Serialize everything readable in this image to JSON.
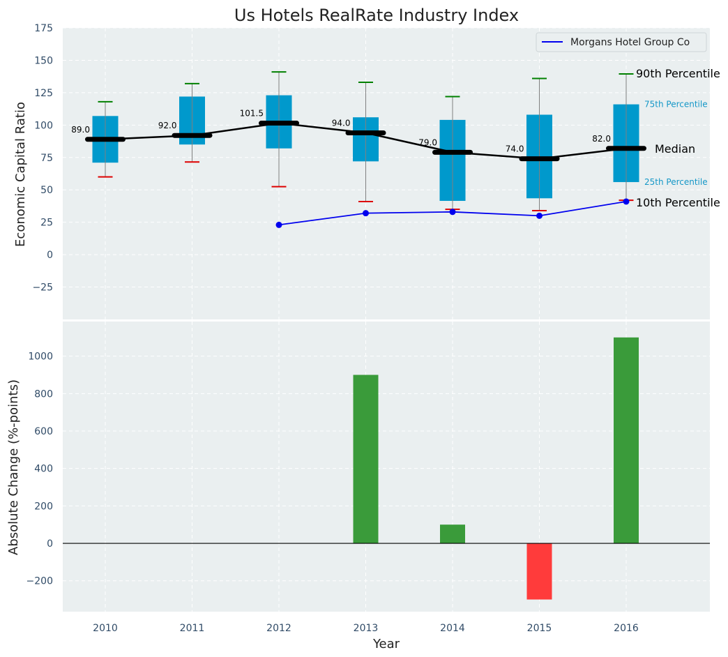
{
  "chart_data": {
    "title": "Us Hotels RealRate Industry Index",
    "xlabel": "Year",
    "categories": [
      "2010",
      "2011",
      "2012",
      "2013",
      "2014",
      "2015",
      "2016"
    ],
    "top_panel": {
      "type": "box",
      "ylabel": "Economic Capital Ratio",
      "ylim": [
        -50,
        175
      ],
      "yticks": [
        "175",
        "150",
        "125",
        "100",
        "75",
        "50",
        "25",
        "0",
        "−25"
      ],
      "ytick_values": [
        175,
        150,
        125,
        100,
        75,
        50,
        25,
        0,
        -25
      ],
      "p10": [
        60,
        71.5,
        52.5,
        41,
        35,
        34,
        42
      ],
      "p25": [
        71,
        85,
        82,
        72,
        41.5,
        43.5,
        56
      ],
      "median": [
        89.0,
        92.0,
        101.5,
        94.0,
        79.0,
        74.0,
        82.0
      ],
      "median_labels": [
        "89.0",
        "92.0",
        "101.5",
        "94.0",
        "79.0",
        "74.0",
        "82.0"
      ],
      "p75": [
        107,
        122,
        123,
        106,
        104,
        108,
        116
      ],
      "p90": [
        118,
        132,
        141,
        133,
        122,
        136,
        139.5
      ],
      "company": {
        "name": "Morgans Hotel Group Co",
        "x": [
          "2012",
          "2013",
          "2014",
          "2015",
          "2016"
        ],
        "values": [
          23,
          32,
          33,
          30,
          41
        ]
      },
      "annotations": {
        "p90": "90th Percentile",
        "p75": "75th Percentile",
        "median": "Median",
        "p25": "25th Percentile",
        "p10": "10th Percentile"
      },
      "legend_position": "top-right"
    },
    "bottom_panel": {
      "type": "bar",
      "ylabel": "Absolute Change (%-points)",
      "ylim": [
        -365,
        1185
      ],
      "yticks": [
        "1000",
        "800",
        "600",
        "400",
        "200",
        "0",
        "−200"
      ],
      "ytick_values": [
        1000,
        800,
        600,
        400,
        200,
        0,
        -200
      ],
      "values": [
        0,
        0,
        0,
        900,
        100,
        -300,
        1100
      ]
    },
    "colors": {
      "panel_bg": "#eaeff0",
      "box": "#0099cc",
      "median_line": "#000000",
      "company_line": "#0000ee",
      "positive_bar": "#3a9b3a",
      "negative_bar": "#ff3b3b",
      "p90_cap": "#008000",
      "p10_cap": "#dd0000",
      "whisker": "#808080"
    }
  }
}
